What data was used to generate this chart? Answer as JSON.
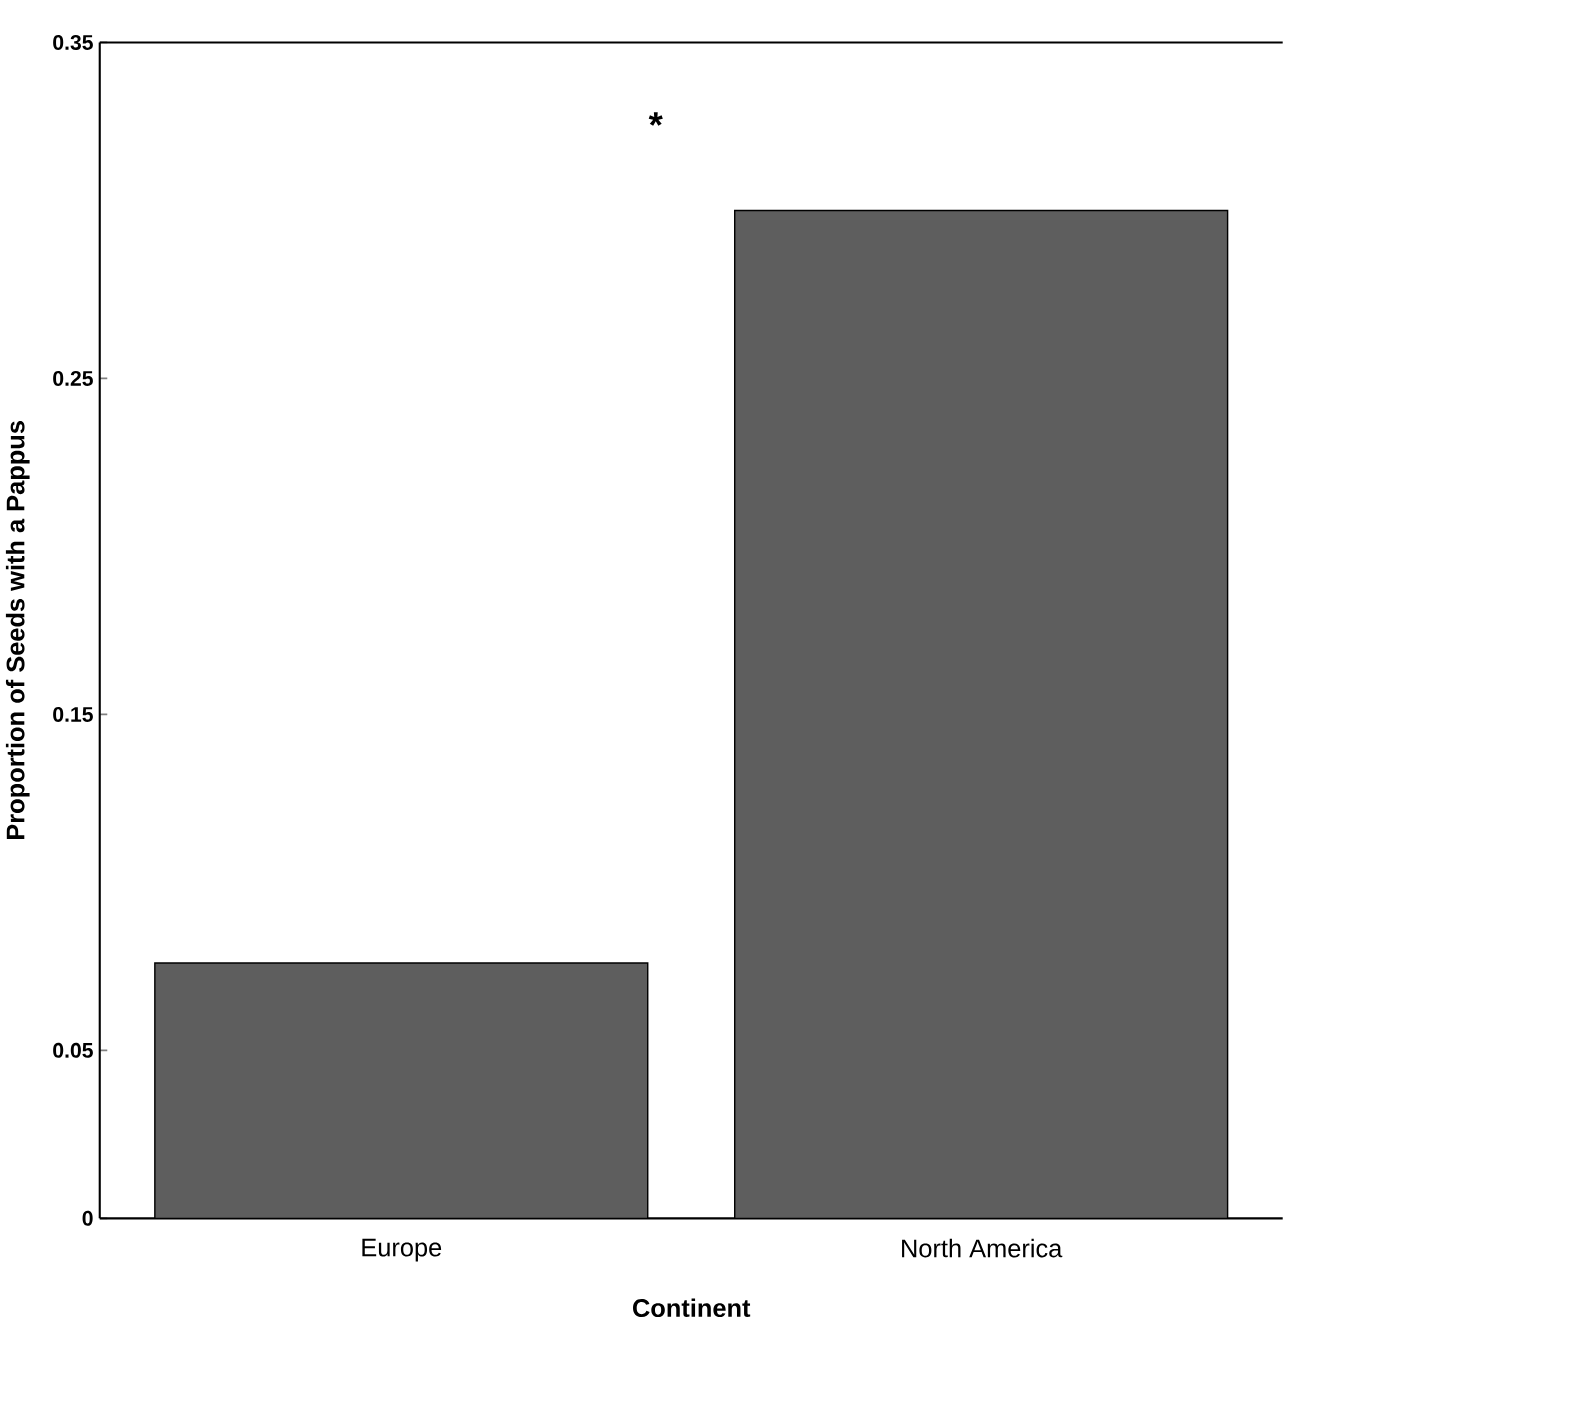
{
  "chart_data": {
    "type": "bar",
    "xlabel": "Continent",
    "ylabel": "Proportion of Seeds with a Pappus",
    "categories": [
      "Europe",
      "North America"
    ],
    "values": [
      0.076,
      0.3
    ],
    "color": "#5e5e5e",
    "ylim": [
      0,
      0.35
    ],
    "yticks": [
      0,
      0.05,
      0.15,
      0.25,
      0.35
    ],
    "annotations": [
      "*"
    ]
  }
}
